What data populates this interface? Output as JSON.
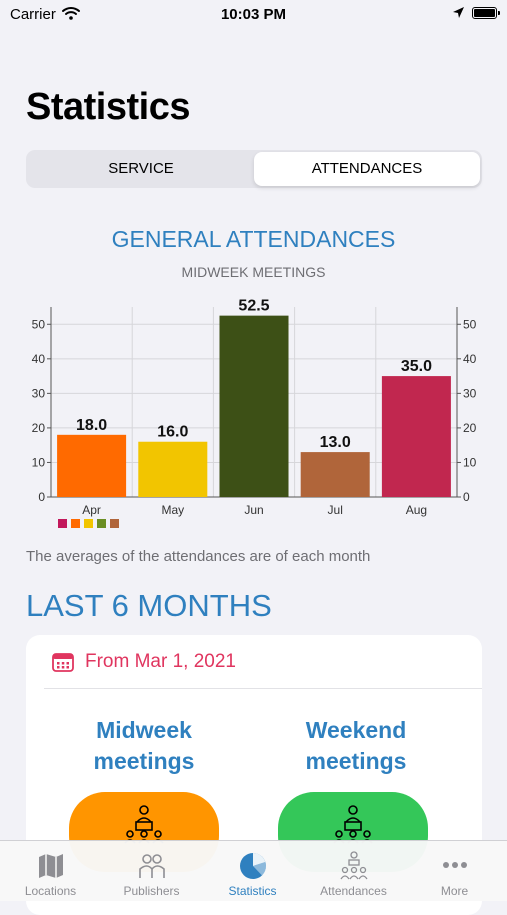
{
  "status_bar": {
    "carrier": "Carrier",
    "time": "10:03 PM"
  },
  "page_title": "Statistics",
  "segments": [
    {
      "label": "SERVICE",
      "selected": false
    },
    {
      "label": "ATTENDANCES",
      "selected": true
    }
  ],
  "chart_header": {
    "title": "GENERAL ATTENDANCES",
    "subtitle": "MIDWEEK MEETINGS"
  },
  "chart_data": {
    "type": "bar",
    "categories": [
      "Apr",
      "May",
      "Jun",
      "Jul",
      "Aug"
    ],
    "values": [
      18.0,
      16.0,
      52.5,
      13.0,
      35.0
    ],
    "value_labels": [
      "18.0",
      "16.0",
      "52.5",
      "13.0",
      "35.0"
    ],
    "colors": [
      "#ff6a00",
      "#f2c500",
      "#3d5016",
      "#b0653a",
      "#c1274f"
    ],
    "legend_colors": [
      "#c2185b",
      "#ff6a00",
      "#f2c500",
      "#6b8e23",
      "#b0653a"
    ],
    "ylim": [
      0,
      55
    ],
    "yticks": [
      0,
      10,
      20,
      30,
      40,
      50
    ],
    "grid": true,
    "xlabel": "",
    "ylabel": ""
  },
  "chart_note": "The averages of the attendances are of each month",
  "section_title": "LAST 6 MONTHS",
  "card": {
    "from_text": "From Mar 1, 2021",
    "midweek_line1": "Midweek",
    "midweek_line2": "meetings",
    "weekend_line1": "Weekend",
    "weekend_line2": "meetings",
    "midweek_color": "#ff9500",
    "weekend_color": "#34c759"
  },
  "tabs": [
    {
      "label": "Locations",
      "icon": "map-icon",
      "active": false
    },
    {
      "label": "Publishers",
      "icon": "people-icon",
      "active": false
    },
    {
      "label": "Statistics",
      "icon": "pie-chart-icon",
      "active": true
    },
    {
      "label": "Attendances",
      "icon": "meeting-icon",
      "active": false
    },
    {
      "label": "More",
      "icon": "ellipsis-icon",
      "active": false
    }
  ]
}
